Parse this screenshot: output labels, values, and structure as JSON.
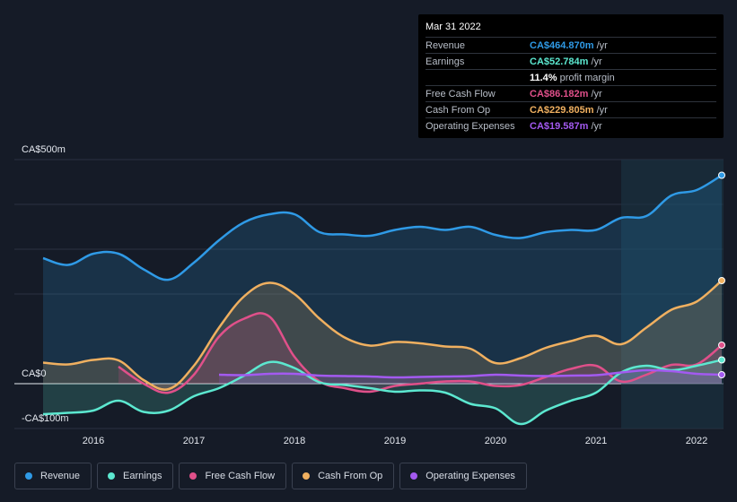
{
  "tooltip": {
    "date": "Mar 31 2022",
    "rows": [
      {
        "label": "Revenue",
        "value": "CA$464.870m",
        "suffix": "/yr",
        "color": "#2f9ae6"
      },
      {
        "label": "Earnings",
        "value": "CA$52.784m",
        "suffix": "/yr",
        "color": "#5ce8d0"
      },
      {
        "label": "",
        "value": "11.4%",
        "suffix": "profit margin",
        "color": "#ffffff"
      },
      {
        "label": "Free Cash Flow",
        "value": "CA$86.182m",
        "suffix": "/yr",
        "color": "#e0508a"
      },
      {
        "label": "Cash From Op",
        "value": "CA$229.805m",
        "suffix": "/yr",
        "color": "#f0b060"
      },
      {
        "label": "Operating Expenses",
        "value": "CA$19.587m",
        "suffix": "/yr",
        "color": "#a35af0"
      }
    ]
  },
  "legend": [
    {
      "label": "Revenue",
      "color": "#2f9ae6"
    },
    {
      "label": "Earnings",
      "color": "#5ce8d0"
    },
    {
      "label": "Free Cash Flow",
      "color": "#e0508a"
    },
    {
      "label": "Cash From Op",
      "color": "#f0b060"
    },
    {
      "label": "Operating Expenses",
      "color": "#a35af0"
    }
  ],
  "chart_data": {
    "type": "area",
    "y_labels": {
      "top": "CA$500m",
      "zero": "CA$0",
      "bottom": "-CA$100m"
    },
    "ylim": [
      -100,
      500
    ],
    "xlim": [
      2015.5,
      2022.25
    ],
    "xticks": [
      2016,
      2017,
      2018,
      2019,
      2020,
      2021,
      2022
    ],
    "xtick_labels": [
      "2016",
      "2017",
      "2018",
      "2019",
      "2020",
      "2021",
      "2022"
    ],
    "highlight_start": 2021.25,
    "series": [
      {
        "name": "Revenue",
        "color": "#2f9ae6",
        "fill": true,
        "x": [
          2015.5,
          2015.75,
          2016.0,
          2016.25,
          2016.5,
          2016.75,
          2017.0,
          2017.25,
          2017.5,
          2017.75,
          2018.0,
          2018.25,
          2018.5,
          2018.75,
          2019.0,
          2019.25,
          2019.5,
          2019.75,
          2020.0,
          2020.25,
          2020.5,
          2020.75,
          2021.0,
          2021.25,
          2021.5,
          2021.75,
          2022.0,
          2022.25
        ],
        "values": [
          280,
          265,
          290,
          290,
          255,
          232,
          270,
          320,
          360,
          378,
          378,
          338,
          333,
          330,
          343,
          350,
          343,
          350,
          332,
          325,
          338,
          343,
          343,
          370,
          374,
          420,
          432,
          465
        ]
      },
      {
        "name": "Cash From Op",
        "color": "#f0b060",
        "fill": true,
        "x": [
          2015.5,
          2015.75,
          2016.0,
          2016.25,
          2016.5,
          2016.75,
          2017.0,
          2017.25,
          2017.5,
          2017.75,
          2018.0,
          2018.25,
          2018.5,
          2018.75,
          2019.0,
          2019.25,
          2019.5,
          2019.75,
          2020.0,
          2020.25,
          2020.5,
          2020.75,
          2021.0,
          2021.25,
          2021.5,
          2021.75,
          2022.0,
          2022.25
        ],
        "values": [
          47,
          43,
          53,
          52,
          8,
          -12,
          40,
          125,
          195,
          225,
          200,
          145,
          103,
          85,
          93,
          90,
          83,
          78,
          46,
          57,
          80,
          95,
          107,
          88,
          125,
          165,
          183,
          230
        ]
      },
      {
        "name": "Free Cash Flow",
        "color": "#e0508a",
        "fill": true,
        "x": [
          2016.25,
          2016.5,
          2016.75,
          2017.0,
          2017.25,
          2017.5,
          2017.75,
          2018.0,
          2018.25,
          2018.5,
          2018.75,
          2019.0,
          2019.25,
          2019.5,
          2019.75,
          2020.0,
          2020.25,
          2020.5,
          2020.75,
          2021.0,
          2021.25,
          2021.5,
          2021.75,
          2022.0,
          2022.25
        ],
        "values": [
          38,
          0,
          -20,
          20,
          105,
          145,
          150,
          60,
          5,
          -10,
          -18,
          -5,
          0,
          5,
          5,
          -5,
          -3,
          15,
          33,
          40,
          5,
          20,
          42,
          43,
          86
        ]
      },
      {
        "name": "Earnings",
        "color": "#5ce8d0",
        "fill": true,
        "x": [
          2015.5,
          2015.75,
          2016.0,
          2016.25,
          2016.5,
          2016.75,
          2017.0,
          2017.25,
          2017.5,
          2017.75,
          2018.0,
          2018.25,
          2018.5,
          2018.75,
          2019.0,
          2019.25,
          2019.5,
          2019.75,
          2020.0,
          2020.25,
          2020.5,
          2020.75,
          2021.0,
          2021.25,
          2021.5,
          2021.75,
          2022.0,
          2022.25
        ],
        "values": [
          -68,
          -65,
          -60,
          -38,
          -63,
          -60,
          -28,
          -10,
          18,
          48,
          35,
          3,
          -3,
          -10,
          -18,
          -15,
          -20,
          -45,
          -55,
          -90,
          -60,
          -38,
          -20,
          25,
          40,
          30,
          40,
          53
        ]
      },
      {
        "name": "Operating Expenses",
        "color": "#a35af0",
        "fill": true,
        "x": [
          2017.25,
          2017.5,
          2017.75,
          2018.0,
          2018.25,
          2018.5,
          2018.75,
          2019.0,
          2019.25,
          2019.5,
          2019.75,
          2020.0,
          2020.25,
          2020.5,
          2020.75,
          2021.0,
          2021.25,
          2021.5,
          2021.75,
          2022.0,
          2022.25
        ],
        "values": [
          20,
          19,
          22,
          22,
          18,
          17,
          16,
          14,
          15,
          16,
          17,
          20,
          18,
          17,
          18,
          19,
          25,
          30,
          28,
          22,
          20
        ]
      }
    ]
  }
}
